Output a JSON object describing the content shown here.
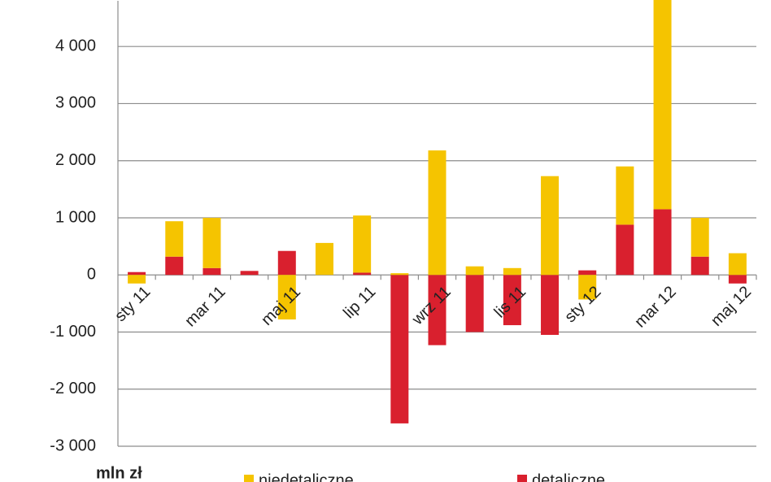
{
  "chart_data": {
    "type": "bar",
    "stacked": true,
    "y_unit_label": "mln zł",
    "categories": [
      "sty 11",
      null,
      "mar 11",
      null,
      "maj 11",
      null,
      "lip 11",
      null,
      "wrz 11",
      null,
      "lis 11",
      null,
      "sty 12",
      null,
      "mar 12",
      null,
      "maj 12"
    ],
    "series": [
      {
        "name": "niedetaliczne",
        "color": "#f5c400",
        "values": [
          -150,
          620,
          880,
          0,
          -780,
          560,
          1000,
          30,
          2180,
          150,
          120,
          1730,
          -430,
          1020,
          3700,
          680,
          380
        ]
      },
      {
        "name": "detaliczne",
        "color": "#d9202e",
        "values": [
          50,
          320,
          120,
          70,
          420,
          0,
          40,
          -2600,
          -1230,
          -1000,
          -880,
          -1050,
          80,
          880,
          1150,
          320,
          -150
        ]
      }
    ],
    "ylim": [
      -3000,
      4800
    ],
    "yticks": [
      {
        "value": -3000,
        "label": "-3 000"
      },
      {
        "value": -2000,
        "label": "-2 000"
      },
      {
        "value": -1000,
        "label": "-1 000"
      },
      0,
      {
        "value": 1000,
        "label": "1 000"
      },
      {
        "value": 2000,
        "label": "2 000"
      },
      {
        "value": 3000,
        "label": "3 000"
      },
      {
        "value": 4000,
        "label": "4 000"
      }
    ],
    "grid": true
  }
}
